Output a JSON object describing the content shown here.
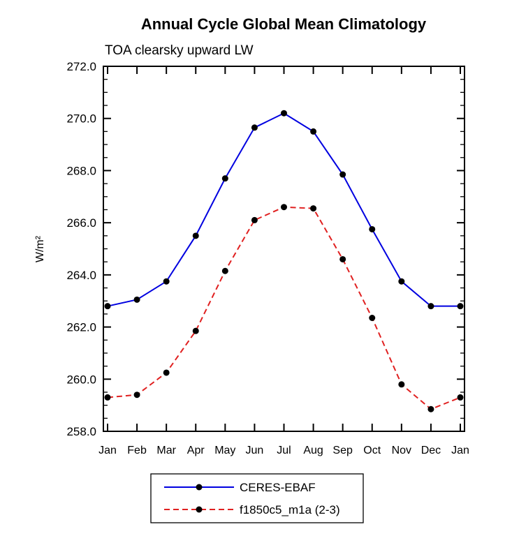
{
  "chart_data": {
    "type": "line",
    "title": "Annual Cycle Global Mean Climatology",
    "subtitle": "TOA clearsky upward LW",
    "ylabel": "W/m²",
    "xlabel": "",
    "ylim": [
      258.0,
      272.0
    ],
    "ytick_step": 2.0,
    "yminor_step": 0.5,
    "grid": false,
    "legend_position": "bottom",
    "marker_color": "#000000",
    "categories": [
      "Jan",
      "Feb",
      "Mar",
      "Apr",
      "May",
      "Jun",
      "Jul",
      "Aug",
      "Sep",
      "Oct",
      "Nov",
      "Dec",
      "Jan"
    ],
    "series": [
      {
        "name": "CERES-EBAF",
        "color": "#0000e0",
        "style": "solid",
        "values": [
          262.8,
          263.05,
          263.75,
          265.5,
          267.7,
          269.65,
          270.2,
          269.5,
          267.85,
          265.75,
          263.75,
          262.8,
          262.8
        ]
      },
      {
        "name": "f1850c5_m1a (2-3)",
        "color": "#e02020",
        "style": "dashed",
        "values": [
          259.3,
          259.4,
          260.25,
          261.85,
          264.15,
          266.1,
          266.6,
          266.55,
          264.6,
          262.35,
          259.8,
          258.85,
          259.3
        ]
      }
    ]
  }
}
